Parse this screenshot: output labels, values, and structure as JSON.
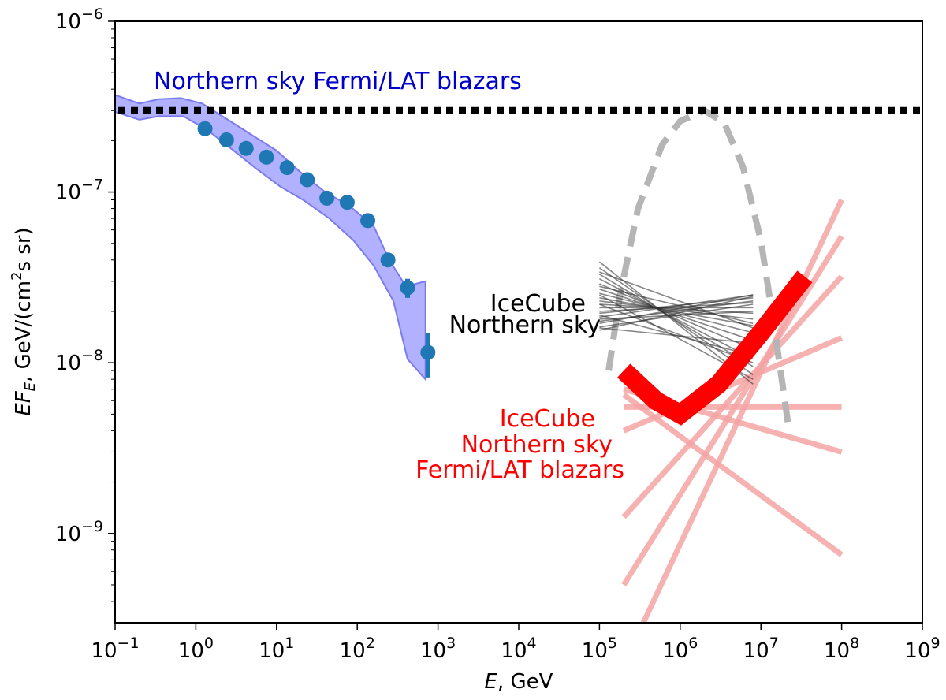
{
  "chart_data": {
    "type": "line",
    "log_x": true,
    "log_y": true,
    "xlim": [
      0.1,
      1000000000
    ],
    "ylim": [
      3e-10,
      1e-06
    ],
    "xlabel_italic": "E",
    "xlabel_rest": ", GeV",
    "ylabel_parts": [
      "EF",
      "E",
      ", GeV/(cm",
      "2",
      "s sr)"
    ],
    "x_tick_labels": [
      {
        "base": "10",
        "exp": "−1",
        "value": 0.1
      },
      {
        "base": "10",
        "exp": "0",
        "value": 1
      },
      {
        "base": "10",
        "exp": "1",
        "value": 10
      },
      {
        "base": "10",
        "exp": "2",
        "value": 100
      },
      {
        "base": "10",
        "exp": "3",
        "value": 1000
      },
      {
        "base": "10",
        "exp": "4",
        "value": 10000
      },
      {
        "base": "10",
        "exp": "5",
        "value": 100000
      },
      {
        "base": "10",
        "exp": "6",
        "value": 1000000
      },
      {
        "base": "10",
        "exp": "7",
        "value": 10000000
      },
      {
        "base": "10",
        "exp": "8",
        "value": 100000000
      },
      {
        "base": "10",
        "exp": "9",
        "value": 1000000000
      }
    ],
    "y_tick_labels": [
      {
        "base": "10",
        "exp": "−6",
        "value": 1e-06
      },
      {
        "base": "10",
        "exp": "−7",
        "value": 1e-07
      },
      {
        "base": "10",
        "exp": "−8",
        "value": 1e-08
      },
      {
        "base": "10",
        "exp": "−9",
        "value": 1e-09
      }
    ],
    "annotations": {
      "fermi": "Northern sky Fermi/LAT blazars",
      "icecube_line1": "IceCube",
      "icecube_line2": "Northern sky",
      "red_line1": "IceCube",
      "red_line2": "Northern sky",
      "red_line3": "Fermi/LAT blazars"
    },
    "colors": {
      "band_fill": "#a9a9ff",
      "band_edge": "#7b7bf0",
      "points": "#1f77b4",
      "fermi_text": "#0000cc",
      "horizontal_line": "#000000",
      "gray_dashed": "#b5b5b5",
      "icecube_lines": "#333333",
      "red_thick": "#ff0000",
      "red_faint": "#f5a3a3",
      "red_text": "#ff0000"
    },
    "series": [
      {
        "name": "Fermi/LAT band",
        "kind": "band",
        "upper": [
          [
            0.1,
            3.7e-07
          ],
          [
            0.2,
            3.3e-07
          ],
          [
            0.35,
            3.5e-07
          ],
          [
            0.65,
            3.55e-07
          ],
          [
            1.2,
            3.3e-07
          ],
          [
            2.5,
            2.65e-07
          ],
          [
            5,
            2.15e-07
          ],
          [
            10,
            1.75e-07
          ],
          [
            20,
            1.3e-07
          ],
          [
            40,
            1e-07
          ],
          [
            80,
            8.3e-08
          ],
          [
            160,
            6.3e-08
          ],
          [
            250,
            4e-08
          ],
          [
            400,
            2.8e-08
          ],
          [
            700,
            3e-08
          ]
        ],
        "lower": [
          [
            700,
            8e-09
          ],
          [
            420,
            1.05e-08
          ],
          [
            280,
            2.3e-08
          ],
          [
            160,
            3.7e-08
          ],
          [
            90,
            5.2e-08
          ],
          [
            45,
            7e-08
          ],
          [
            22,
            8.9e-08
          ],
          [
            11,
            1.08e-07
          ],
          [
            5.5,
            1.38e-07
          ],
          [
            2.8,
            1.78e-07
          ],
          [
            1.4,
            2.3e-07
          ],
          [
            0.7,
            2.78e-07
          ],
          [
            0.35,
            2.78e-07
          ],
          [
            0.2,
            2.65e-07
          ],
          [
            0.1,
            2.95e-07
          ]
        ]
      },
      {
        "name": "Fermi/LAT points",
        "kind": "scatter",
        "points": [
          [
            1.3,
            2.35e-07
          ],
          [
            2.4,
            2.02e-07
          ],
          [
            4.2,
            1.8e-07
          ],
          [
            7.5,
            1.6e-07
          ],
          [
            13.5,
            1.39e-07
          ],
          [
            24,
            1.18e-07
          ],
          [
            42,
            9.2e-08
          ],
          [
            75,
            8.7e-08
          ],
          [
            135,
            6.8e-08
          ],
          [
            240,
            4e-08
          ],
          [
            420,
            2.75e-08
          ],
          [
            750,
            1.15e-08
          ]
        ],
        "errors": [
          [
            420,
            2.4e-08,
            3.1e-08
          ],
          [
            750,
            8.2e-09,
            1.5e-08
          ]
        ]
      },
      {
        "name": "Fermi/LAT total level",
        "kind": "hline",
        "y": 3e-07
      },
      {
        "name": "gray dashed parabola",
        "kind": "line",
        "points": [
          [
            130000,
            9e-09
          ],
          [
            180000,
            2.5e-08
          ],
          [
            300000,
            8e-08
          ],
          [
            600000,
            1.9e-07
          ],
          [
            1000000,
            2.6e-07
          ],
          [
            2000000,
            3e-07
          ],
          [
            3500000,
            2.55e-07
          ],
          [
            6000000,
            1.4e-07
          ],
          [
            10000000,
            5.2e-08
          ],
          [
            15000000,
            1.5e-08
          ],
          [
            22000000,
            4.2e-09
          ]
        ]
      },
      {
        "name": "IceCube Northern sky power-law bundle",
        "kind": "line_bundle",
        "x_range": [
          100000,
          8000000
        ],
        "segments": [
          [
            3.9e-08,
            7.5e-09
          ],
          [
            3.6e-08,
            8.5e-09
          ],
          [
            3.3e-08,
            9.5e-09
          ],
          [
            3.1e-08,
            1.05e-08
          ],
          [
            2.9e-08,
            1.2e-08
          ],
          [
            2.7e-08,
            1.35e-08
          ],
          [
            2.55e-08,
            1.5e-08
          ],
          [
            2.4e-08,
            1.65e-08
          ],
          [
            2.3e-08,
            1.8e-08
          ],
          [
            2.2e-08,
            1.95e-08
          ],
          [
            2.1e-08,
            2.1e-08
          ],
          [
            2e-08,
            2.25e-08
          ],
          [
            1.95e-08,
            2.4e-08
          ],
          [
            1.85e-08,
            2.5e-08
          ],
          [
            1.8e-08,
            2e-08
          ],
          [
            1.75e-08,
            2.3e-08
          ],
          [
            1.7e-08,
            2.5e-08
          ],
          [
            1.62e-08,
            2.2e-08
          ],
          [
            1.55e-08,
            2.45e-08
          ],
          [
            2.5e-08,
            8e-09
          ],
          [
            2.2e-08,
            1e-08
          ],
          [
            1.9e-08,
            1.1e-08
          ],
          [
            3.4e-08,
            1.6e-08
          ],
          [
            2.8e-08,
            1.7e-08
          ],
          [
            1.6e-08,
            1.3e-08
          ]
        ]
      },
      {
        "name": "IceCube Northern sky Fermi/LAT blazars",
        "kind": "line",
        "points": [
          [
            200000,
            9e-09
          ],
          [
            500000,
            6e-09
          ],
          [
            1000000,
            5e-09
          ],
          [
            3000000,
            7.5e-09
          ],
          [
            10000000,
            1.5e-08
          ],
          [
            35000000,
            3.2e-08
          ]
        ]
      },
      {
        "name": "faint red power-law fits",
        "kind": "segments",
        "segments": [
          [
            [
              200000,
              5.5e-09
            ],
            [
              100000000,
              5.5e-09
            ]
          ],
          [
            [
              200000,
              7e-09
            ],
            [
              100000000,
              3e-09
            ]
          ],
          [
            [
              200000,
              4e-09
            ],
            [
              100000000,
              1.4e-08
            ]
          ],
          [
            [
              200000,
              6.5e-09
            ],
            [
              100000000,
              7.5e-10
            ]
          ],
          [
            [
              200000,
              1.25e-09
            ],
            [
              100000000,
              3.2e-08
            ]
          ],
          [
            [
              200000,
              5e-10
            ],
            [
              100000000,
              5.5e-08
            ]
          ],
          [
            [
              350000,
              3e-10
            ],
            [
              100000000,
              9e-08
            ]
          ]
        ]
      }
    ]
  }
}
